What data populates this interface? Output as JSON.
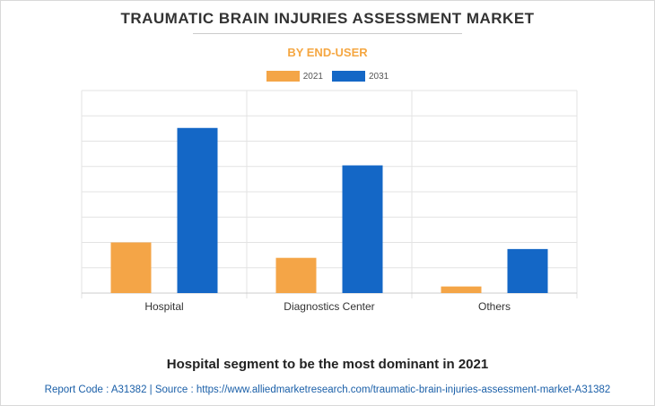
{
  "title": "TRAUMATIC BRAIN INJURIES ASSESSMENT MARKET",
  "subtitle": "BY END-USER",
  "headline": "Hospital segment to be the most dominant in 2021",
  "footer": "Report Code : A31382  |  Source : https://www.alliedmarketresearch.com/traumatic-brain-injuries-assessment-market-A31382",
  "colors": {
    "s2021": "#f4a547",
    "s2031": "#1467c6"
  },
  "chart_data": {
    "type": "bar",
    "categories": [
      "Hospital",
      "Diagnostics Center",
      "Others"
    ],
    "series": [
      {
        "name": "2021",
        "values": [
          2.3,
          1.6,
          0.3
        ]
      },
      {
        "name": "2031",
        "values": [
          7.5,
          5.8,
          2.0
        ]
      }
    ],
    "ylim": [
      -0.7,
      8.5
    ],
    "grid": true,
    "legend": "top-center"
  }
}
